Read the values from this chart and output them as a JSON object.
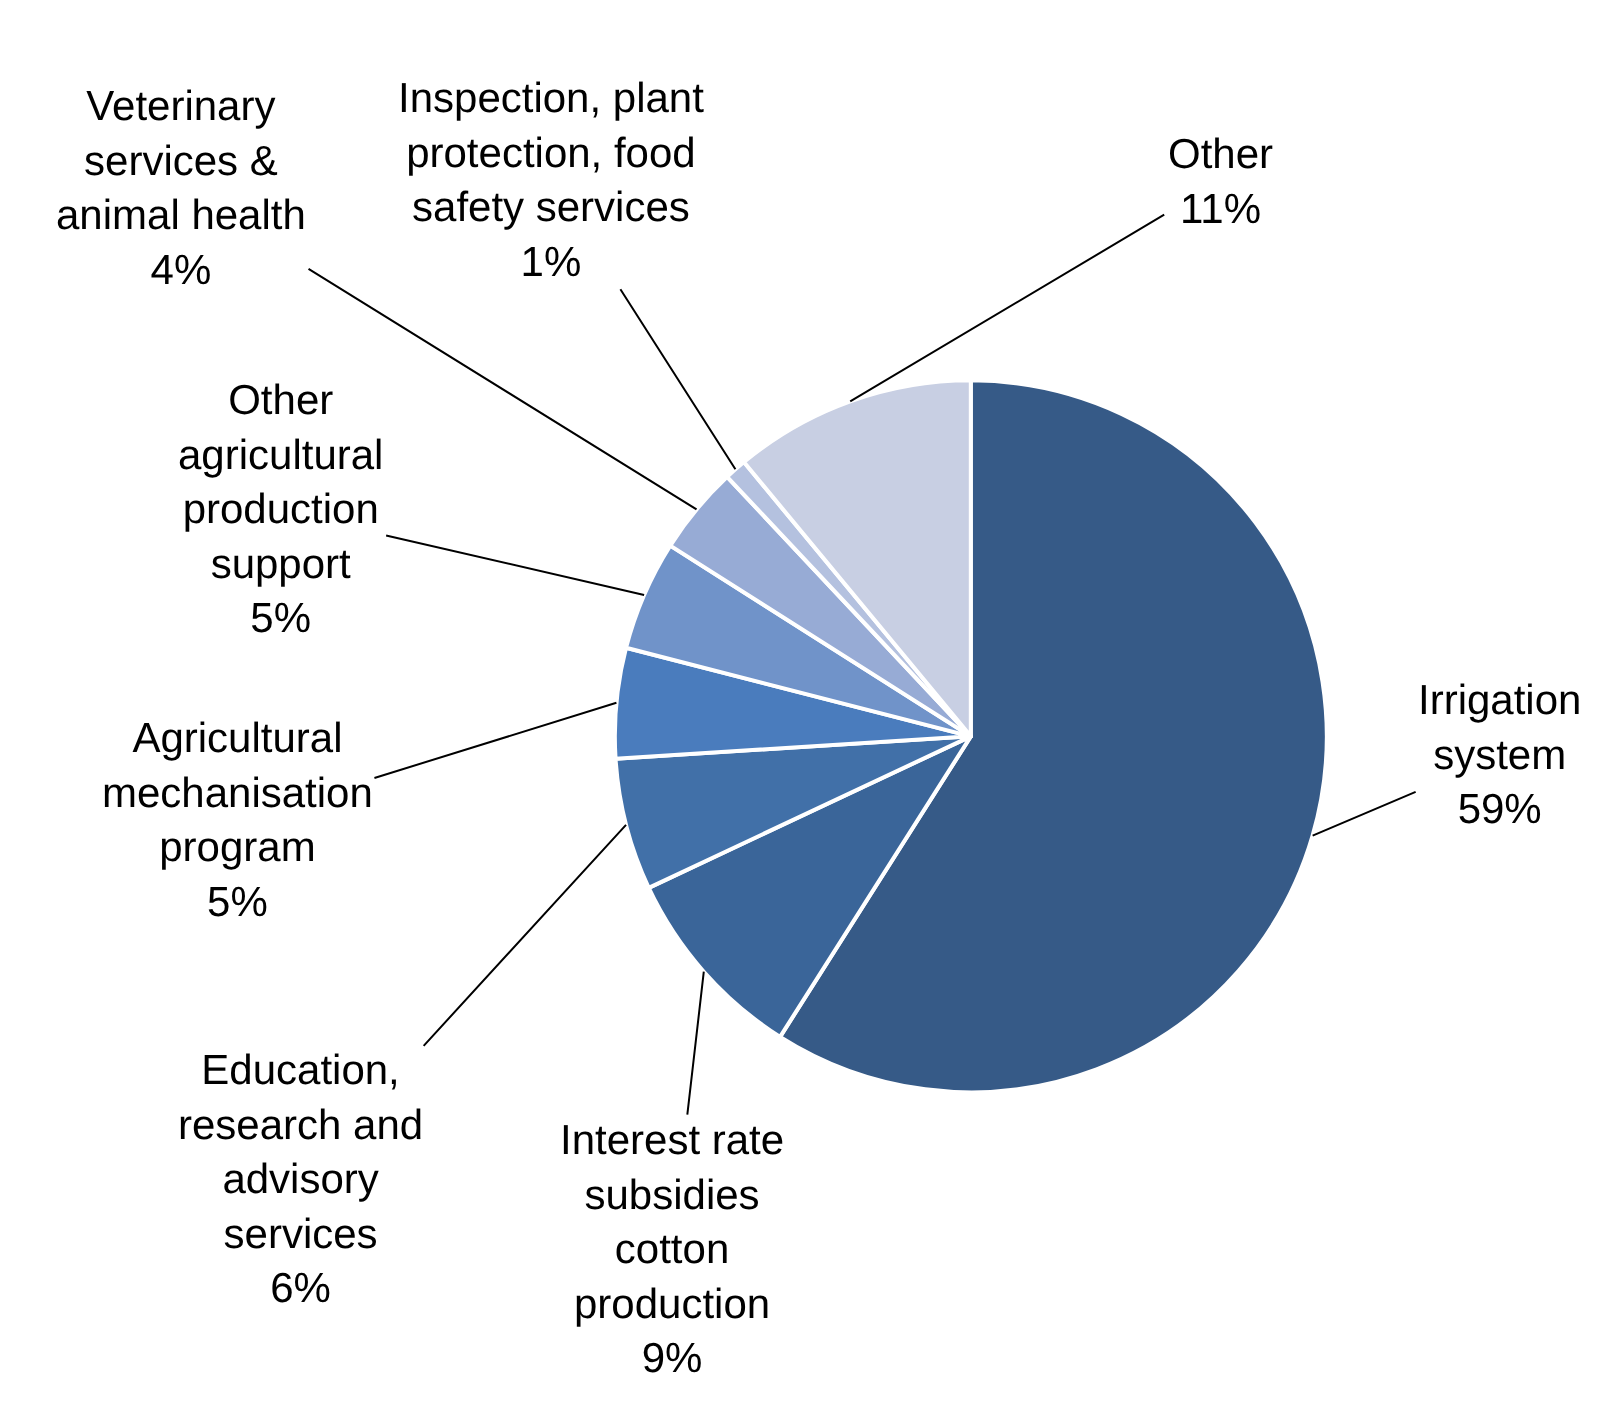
{
  "chart_data": {
    "type": "pie",
    "categories": [
      "Irrigation system",
      "Interest rate subsidies cotton production",
      "Education, research and advisory services",
      "Agricultural mechanisation program",
      "Other agricultural production support",
      "Veterinary services & animal health",
      "Inspection, plant protection, food safety services",
      "Other"
    ],
    "values": [
      59,
      9,
      6,
      5,
      5,
      4,
      1,
      11
    ],
    "colors": [
      "#365a87",
      "#3a6599",
      "#4170a8",
      "#4a7cbd",
      "#7093c9",
      "#97abd5",
      "#b4c1df",
      "#c8cfe3"
    ],
    "value_labels": [
      "59%",
      "9%",
      "6%",
      "5%",
      "5%",
      "4%",
      "1%",
      "11%"
    ],
    "legend": false
  }
}
